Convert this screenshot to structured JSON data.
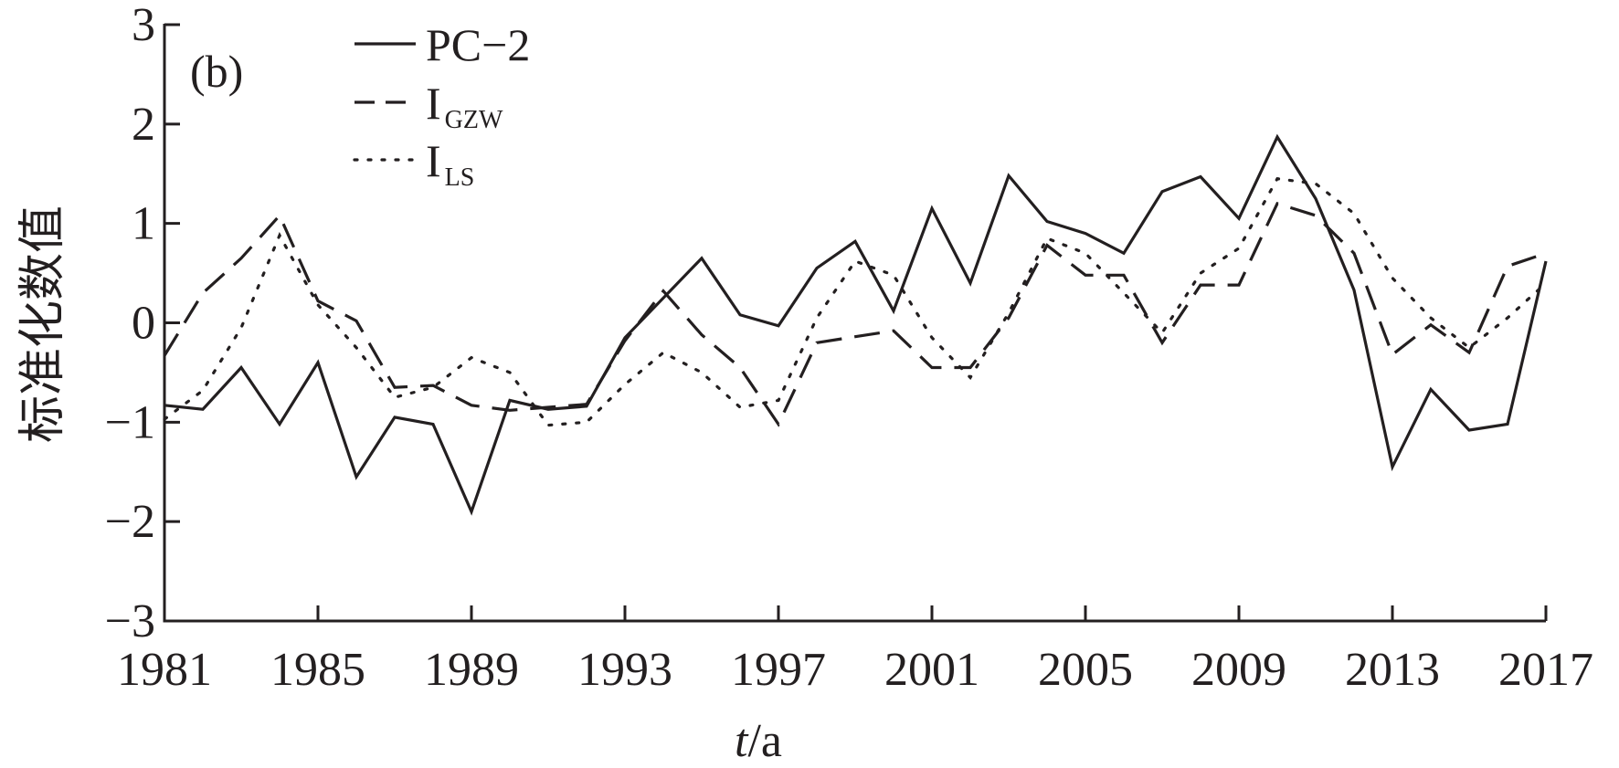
{
  "chart_data": {
    "type": "line",
    "panel_label": "(b)",
    "xlabel_italic": "t",
    "xlabel_rest": "/a",
    "ylabel": "标准化数值",
    "xlim": [
      1981,
      2017
    ],
    "ylim": [
      -3,
      3
    ],
    "xticks": [
      1981,
      1985,
      1989,
      1993,
      1997,
      2001,
      2005,
      2009,
      2013,
      2017
    ],
    "yticks": [
      -3,
      -2,
      -1,
      0,
      1,
      2,
      3
    ],
    "ytick_labels": [
      "−3",
      "−2",
      "−1",
      "0",
      "1",
      "2",
      "3"
    ],
    "x": [
      1981,
      1982,
      1983,
      1984,
      1985,
      1986,
      1987,
      1988,
      1989,
      1990,
      1991,
      1992,
      1993,
      1994,
      1995,
      1996,
      1997,
      1998,
      1999,
      2000,
      2001,
      2002,
      2003,
      2004,
      2005,
      2006,
      2007,
      2008,
      2009,
      2010,
      2011,
      2012,
      2013,
      2014,
      2015,
      2016,
      2017
    ],
    "series": [
      {
        "name": "PC−2",
        "legend_main": "PC−2",
        "legend_sub": "",
        "style": "solid",
        "values": [
          -0.83,
          -0.87,
          -0.45,
          -1.02,
          -0.4,
          -1.55,
          -0.95,
          -1.02,
          -1.9,
          -0.78,
          -0.87,
          -0.84,
          -0.15,
          0.25,
          0.65,
          0.08,
          -0.03,
          0.55,
          0.82,
          0.12,
          1.15,
          0.4,
          1.48,
          1.02,
          0.9,
          0.7,
          1.32,
          1.47,
          1.05,
          1.87,
          1.25,
          0.33,
          -1.45,
          -0.67,
          -1.08,
          -1.02,
          0.62
        ]
      },
      {
        "name": "IGZW",
        "legend_main": "I",
        "legend_sub": "GZW",
        "style": "dashed",
        "values": [
          -0.33,
          0.3,
          0.65,
          1.08,
          0.22,
          0.02,
          -0.65,
          -0.63,
          -0.83,
          -0.88,
          -0.85,
          -0.82,
          -0.18,
          0.32,
          -0.12,
          -0.45,
          -1.02,
          -0.2,
          -0.14,
          -0.08,
          -0.45,
          -0.45,
          0.05,
          0.78,
          0.48,
          0.48,
          -0.2,
          0.38,
          0.38,
          1.2,
          1.08,
          0.7,
          -0.32,
          -0.02,
          -0.3,
          0.57,
          0.7
        ]
      },
      {
        "name": "ILS",
        "legend_main": "I",
        "legend_sub": "LS",
        "style": "dotted",
        "values": [
          -0.97,
          -0.68,
          -0.05,
          0.88,
          0.18,
          -0.25,
          -0.75,
          -0.65,
          -0.35,
          -0.5,
          -1.03,
          -1.0,
          -0.62,
          -0.3,
          -0.5,
          -0.85,
          -0.78,
          0.05,
          0.62,
          0.48,
          -0.15,
          -0.55,
          0.1,
          0.85,
          0.7,
          0.3,
          -0.1,
          0.5,
          0.75,
          1.45,
          1.4,
          1.1,
          0.45,
          0.05,
          -0.25,
          0.05,
          0.4
        ]
      }
    ],
    "grid": false,
    "legend_position": "top-left"
  }
}
